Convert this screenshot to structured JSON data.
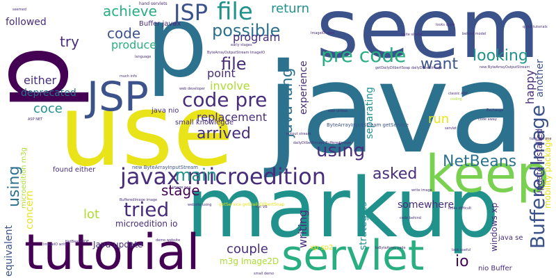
{
  "palette": {
    "dark_purple": "#440154",
    "indigo": "#472d7b",
    "blue": "#3b528b",
    "steel_blue": "#2c728e",
    "teal": "#21918c",
    "green": "#28ae80",
    "lime": "#5ec962",
    "yellow_green": "#addc30",
    "yellow": "#fde725"
  },
  "words": [
    "seem",
    "p",
    "java",
    "p",
    "use",
    "markup",
    "tutorial",
    "servlet",
    "keep",
    "JSP",
    "JSP",
    "javax microedition",
    "file",
    "code pre",
    "pre code",
    "using",
    "NetBeans",
    "BufferedImage",
    "tried",
    "main",
    "java lang",
    "asked",
    "possible",
    "want",
    "looking",
    "arrived",
    "file",
    "stage",
    "lot",
    "couple",
    "io",
    "using",
    "coce",
    "deprecated",
    "either",
    "achieve",
    "return",
    "try",
    "code",
    "program",
    "produce",
    "point",
    "involve",
    "replacement",
    "experience",
    "separating",
    "run",
    "happy",
    "another",
    "writing",
    "concern",
    "strategies",
    "equivalent",
    "somewhere",
    "windows xp",
    "update installed",
    "mobility package",
    "microedition io",
    "m3g Image2D",
    "Java update",
    "xp sp2",
    "java se",
    "nio Buffer",
    "followed",
    "Buffer javax",
    "microedition m3g",
    "found either",
    "small knowlegde",
    "java nio",
    "hand servlets",
    "new ByteArrayInputStream",
    "ByteArrayInputStream getService",
    "quite similar",
    "classic ASP",
    "web developer",
    "looks difficult",
    "code behind",
    "tutorials one",
    "web unless",
    "getDailyDilbertSoap dailyDilbertImage",
    "behind model",
    "quick tutorials",
    "ImageIO read",
    "much info",
    "ASP NET",
    "ImageIO write",
    "write image",
    "small demo",
    "demo website",
    "ByteArrayOutputStream ImageIO",
    "new ByteArrayOutputStream",
    "image png",
    "code away",
    "looks quite",
    "output stream",
    "look useful",
    "NetBeans IDE",
    "website using",
    "dailyDilbertImage BufferedImage",
    "toByteArray code",
    "Exchange",
    "net VB",
    "getService getDailyDilbertSoap",
    "early stages",
    "BufferedImage image",
    "coding",
    "seemed",
    "language",
    "servlet"
  ]
}
